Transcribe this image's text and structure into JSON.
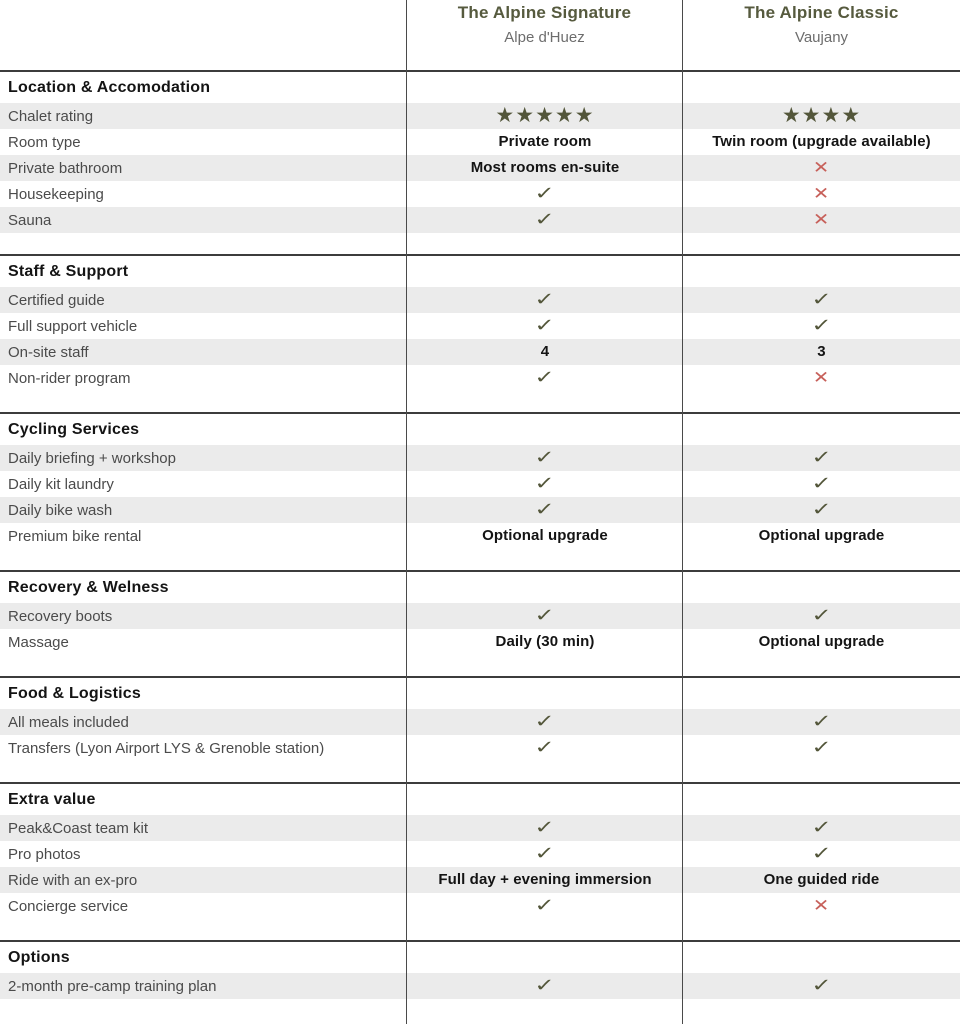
{
  "table": {
    "columns": [
      {
        "title": "The Alpine Signature",
        "subtitle": "Alpe d'Huez"
      },
      {
        "title": "The Alpine Classic",
        "subtitle": "Vaujany"
      }
    ],
    "sections": [
      {
        "title": "Location & Accomodation",
        "rows": [
          {
            "label": "Chalet rating",
            "cells": [
              {
                "t": "stars",
                "n": 5
              },
              {
                "t": "stars",
                "n": 4
              }
            ]
          },
          {
            "label": "Room type",
            "cells": [
              {
                "t": "text",
                "v": "Private room"
              },
              {
                "t": "text",
                "v": "Twin room (upgrade available)"
              }
            ]
          },
          {
            "label": "Private bathroom",
            "cells": [
              {
                "t": "text",
                "v": "Most rooms en-suite"
              },
              {
                "t": "cross"
              }
            ]
          },
          {
            "label": "Housekeeping",
            "cells": [
              {
                "t": "check"
              },
              {
                "t": "cross"
              }
            ]
          },
          {
            "label": "Sauna",
            "cells": [
              {
                "t": "check"
              },
              {
                "t": "cross"
              }
            ]
          }
        ]
      },
      {
        "title": "Staff & Support",
        "rows": [
          {
            "label": "Certified guide",
            "cells": [
              {
                "t": "check"
              },
              {
                "t": "check"
              }
            ]
          },
          {
            "label": "Full support vehicle",
            "cells": [
              {
                "t": "check"
              },
              {
                "t": "check"
              }
            ]
          },
          {
            "label": "On-site staff",
            "cells": [
              {
                "t": "text",
                "v": "4"
              },
              {
                "t": "text",
                "v": "3"
              }
            ]
          },
          {
            "label": "Non-rider program",
            "cells": [
              {
                "t": "check"
              },
              {
                "t": "cross"
              }
            ]
          }
        ]
      },
      {
        "title": "Cycling Services",
        "rows": [
          {
            "label": "Daily briefing + workshop",
            "cells": [
              {
                "t": "check"
              },
              {
                "t": "check"
              }
            ]
          },
          {
            "label": "Daily kit laundry",
            "cells": [
              {
                "t": "check"
              },
              {
                "t": "check"
              }
            ]
          },
          {
            "label": "Daily bike wash",
            "cells": [
              {
                "t": "check"
              },
              {
                "t": "check"
              }
            ]
          },
          {
            "label": "Premium bike rental",
            "cells": [
              {
                "t": "text",
                "v": "Optional upgrade"
              },
              {
                "t": "text",
                "v": "Optional upgrade"
              }
            ]
          }
        ]
      },
      {
        "title": "Recovery & Welness",
        "rows": [
          {
            "label": "Recovery boots",
            "cells": [
              {
                "t": "check"
              },
              {
                "t": "check"
              }
            ]
          },
          {
            "label": "Massage",
            "cells": [
              {
                "t": "text",
                "v": "Daily (30 min)"
              },
              {
                "t": "text",
                "v": "Optional upgrade"
              }
            ]
          }
        ]
      },
      {
        "title": "Food & Logistics",
        "rows": [
          {
            "label": "All meals included",
            "cells": [
              {
                "t": "check"
              },
              {
                "t": "check"
              }
            ]
          },
          {
            "label": "Transfers (Lyon Airport LYS & Grenoble station)",
            "cells": [
              {
                "t": "check"
              },
              {
                "t": "check"
              }
            ]
          }
        ]
      },
      {
        "title": "Extra value",
        "rows": [
          {
            "label": "Peak&Coast team kit",
            "cells": [
              {
                "t": "check"
              },
              {
                "t": "check"
              }
            ]
          },
          {
            "label": "Pro photos",
            "cells": [
              {
                "t": "check"
              },
              {
                "t": "check"
              }
            ]
          },
          {
            "label": "Ride with an ex-pro",
            "cells": [
              {
                "t": "text",
                "v": "Full day + evening immersion"
              },
              {
                "t": "text",
                "v": "One guided ride"
              }
            ]
          },
          {
            "label": "Concierge service",
            "cells": [
              {
                "t": "check"
              },
              {
                "t": "cross"
              }
            ]
          }
        ]
      },
      {
        "title": "Options",
        "rows": [
          {
            "label": "2-month pre-camp training plan",
            "cells": [
              {
                "t": "check"
              },
              {
                "t": "check"
              }
            ]
          }
        ]
      }
    ]
  },
  "icons": {
    "check-icon": "✓",
    "cross-icon": "✕",
    "star-icon": "★"
  },
  "colors": {
    "accent_olive": "#53563a",
    "cross_red": "#c7605a",
    "row_stripe": "#ebebeb",
    "rule_line": "#3c3c3c"
  }
}
